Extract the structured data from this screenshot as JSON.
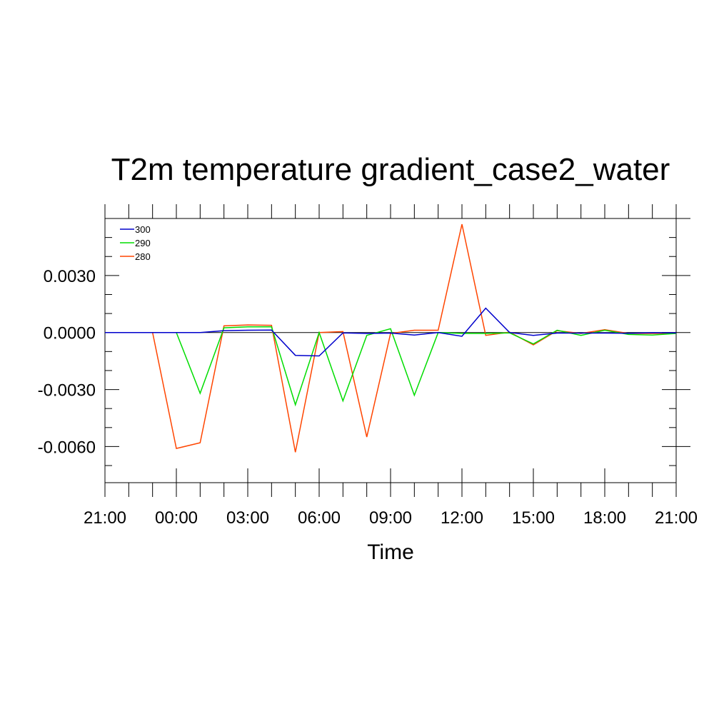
{
  "chart_data": {
    "type": "line",
    "title": "T2m temperature gradient_case2_water",
    "xlabel": "Time",
    "ylabel": "",
    "x": [
      "21:00",
      "22:00",
      "23:00",
      "00:00",
      "01:00",
      "02:00",
      "03:00",
      "04:00",
      "05:00",
      "06:00",
      "07:00",
      "08:00",
      "09:00",
      "10:00",
      "11:00",
      "12:00",
      "13:00",
      "14:00",
      "15:00",
      "16:00",
      "17:00",
      "18:00",
      "19:00",
      "20:00",
      "21:00"
    ],
    "x_tick_labels": [
      "21:00",
      "00:00",
      "03:00",
      "06:00",
      "09:00",
      "12:00",
      "15:00",
      "18:00",
      "21:00"
    ],
    "y_tick_labels": [
      "-0.0060",
      "-0.0030",
      "0.0000",
      "0.0030"
    ],
    "y_ticks": [
      -0.006,
      -0.003,
      0.0,
      0.003
    ],
    "ylim": [
      -0.0079,
      0.006
    ],
    "grid": false,
    "legend_position": "top-left",
    "zero_line": true,
    "series": [
      {
        "name": "300",
        "color": "#0000cc",
        "values": [
          0,
          0,
          0,
          0,
          0,
          0.0001,
          0.00012,
          0.00013,
          -0.0012,
          -0.00123,
          -2e-05,
          -5e-05,
          -3e-05,
          -0.00013,
          0,
          -0.0002,
          0.00128,
          0,
          -0.00015,
          -3e-05,
          -3e-05,
          -3e-05,
          -4e-05,
          -1e-05,
          -2e-05
        ]
      },
      {
        "name": "290",
        "color": "#00dd00",
        "values": [
          0,
          0,
          0,
          0,
          -0.0032,
          0.00025,
          0.0003,
          0.0003,
          -0.0038,
          0,
          -0.0036,
          -0.00015,
          0.0002,
          -0.0033,
          0,
          -5e-05,
          -5e-05,
          -2e-05,
          -0.0006,
          0.00012,
          -0.00015,
          0.00012,
          -0.0001,
          -0.00013,
          -5e-05
        ]
      },
      {
        "name": "280",
        "color": "#ff4500",
        "values": [
          0,
          0,
          0,
          -0.0061,
          -0.0058,
          0.00035,
          0.0004,
          0.00038,
          -0.0063,
          0,
          5e-05,
          -0.0055,
          -5e-05,
          0.00012,
          0.00012,
          0.0057,
          -0.00015,
          2e-05,
          -0.00065,
          0.0001,
          -5e-05,
          0.00015,
          -5e-05,
          -5e-05,
          -5e-05
        ]
      }
    ]
  }
}
